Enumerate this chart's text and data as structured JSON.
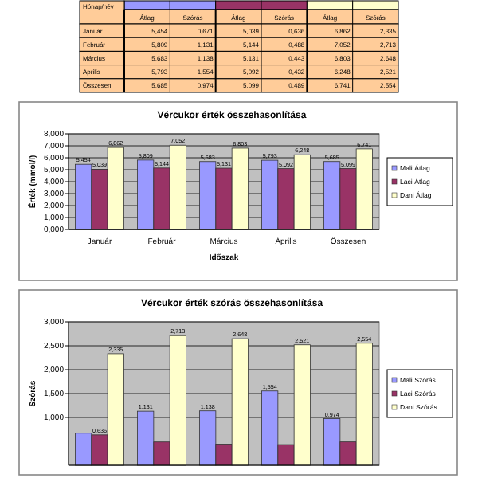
{
  "chart_data": [
    {
      "type": "other",
      "ylabel": "Hónap/név",
      "categories": [
        "Január",
        "Február",
        "Március",
        "Április",
        "Összesen"
      ],
      "series": [
        {
          "name": "Átlag",
          "values": [
            5.454,
            5.809,
            5.683,
            5.793,
            5.685
          ],
          "value_labels": [
            "5,454",
            "5,809",
            "5,683",
            "5,793",
            "5,685"
          ]
        },
        {
          "name": "Szórás",
          "values": [
            0.671,
            1.131,
            1.138,
            1.554,
            0.974
          ],
          "value_labels": [
            "0,671",
            "1,131",
            "1,138",
            "1,554",
            "0,974"
          ]
        },
        {
          "name": "Átlag",
          "values": [
            5.039,
            5.144,
            5.131,
            5.092,
            5.099
          ],
          "value_labels": [
            "5,039",
            "5,144",
            "5,131",
            "5,092",
            "5,099"
          ]
        },
        {
          "name": "Szórás",
          "values": [
            0.636,
            0.488,
            0.443,
            0.432,
            0.489
          ],
          "value_labels": [
            "0,636",
            "0,488",
            "0,443",
            "0,432",
            "0,489"
          ]
        },
        {
          "name": "Átlag",
          "values": [
            6.862,
            7.052,
            6.803,
            6.248,
            6.741
          ],
          "value_labels": [
            "6,862",
            "7,052",
            "6,803",
            "6,248",
            "6,741"
          ]
        },
        {
          "name": "Szórás",
          "values": [
            2.335,
            2.713,
            2.648,
            2.521,
            2.554
          ],
          "value_labels": [
            "2,335",
            "2,713",
            "2,648",
            "2,521",
            "2,554"
          ]
        }
      ]
    },
    {
      "type": "bar",
      "title": "Vércukor érték összehasonlítása",
      "xlabel": "Időszak",
      "ylabel": "Érték (mmol/l)",
      "categories": [
        "Január",
        "Február",
        "Március",
        "Április",
        "Összesen"
      ],
      "ylim": [
        0,
        8
      ],
      "yticks": [
        {
          "value": 0,
          "label": "0,000"
        },
        {
          "value": 1,
          "label": "1,000"
        },
        {
          "value": 2,
          "label": "2,000"
        },
        {
          "value": 3,
          "label": "3,000"
        },
        {
          "value": 4,
          "label": "4,000"
        },
        {
          "value": 5,
          "label": "5,000"
        },
        {
          "value": 6,
          "label": "6,000"
        },
        {
          "value": 7,
          "label": "7,000"
        },
        {
          "value": 8,
          "label": "8,000"
        }
      ],
      "grid": "y",
      "legend": "right",
      "series": [
        {
          "name": "Mali Átlag",
          "color": "#9999ff",
          "values": [
            5.454,
            5.809,
            5.683,
            5.793,
            5.685
          ],
          "value_labels": [
            "5,454",
            "5,809",
            "5,683",
            "5,793",
            "5,685"
          ]
        },
        {
          "name": "Laci Átlag",
          "color": "#993366",
          "values": [
            5.039,
            5.144,
            5.131,
            5.092,
            5.099
          ],
          "value_labels": [
            "5,039",
            "5,144",
            "5,131",
            "5,092",
            "5,099"
          ]
        },
        {
          "name": "Dani Átlag",
          "color": "#ffffcc",
          "values": [
            6.862,
            7.052,
            6.803,
            6.248,
            6.741
          ],
          "value_labels": [
            "6,862",
            "7,052",
            "6,803",
            "6,248",
            "6,741"
          ]
        }
      ]
    },
    {
      "type": "bar",
      "title": "Vércukor érték szórás összehasonlítása",
      "ylabel": "Szórás",
      "categories": [
        null,
        null,
        null,
        null,
        null
      ],
      "ylim": [
        0,
        3
      ],
      "yticks": [
        {
          "value": 1,
          "label": "1,000"
        },
        {
          "value": 1.5,
          "label": "1,500"
        },
        {
          "value": 2,
          "label": "2,000"
        },
        {
          "value": 2.5,
          "label": "2,500"
        },
        {
          "value": 3,
          "label": "3,000"
        }
      ],
      "tick_labels": "y",
      "grid": "y",
      "legend": "right",
      "series": [
        {
          "name": "Mali Szórás",
          "color": "#9999ff",
          "values": [
            0.671,
            1.131,
            1.138,
            1.554,
            0.974
          ],
          "value_labels": [
            null,
            "1,131",
            "1,138",
            "1,554",
            "0,974"
          ]
        },
        {
          "name": "Laci Szórás",
          "color": "#993366",
          "values": [
            0.636,
            0.488,
            0.443,
            0.432,
            0.489
          ],
          "value_labels": [
            "0,636",
            null,
            null,
            null,
            null
          ]
        },
        {
          "name": "Dani Szórás",
          "color": "#ffffcc",
          "values": [
            2.335,
            2.713,
            2.648,
            2.521,
            2.554
          ],
          "value_labels": [
            "2,335",
            "2,713",
            "2,648",
            "2,521",
            "2,554"
          ]
        }
      ]
    }
  ]
}
